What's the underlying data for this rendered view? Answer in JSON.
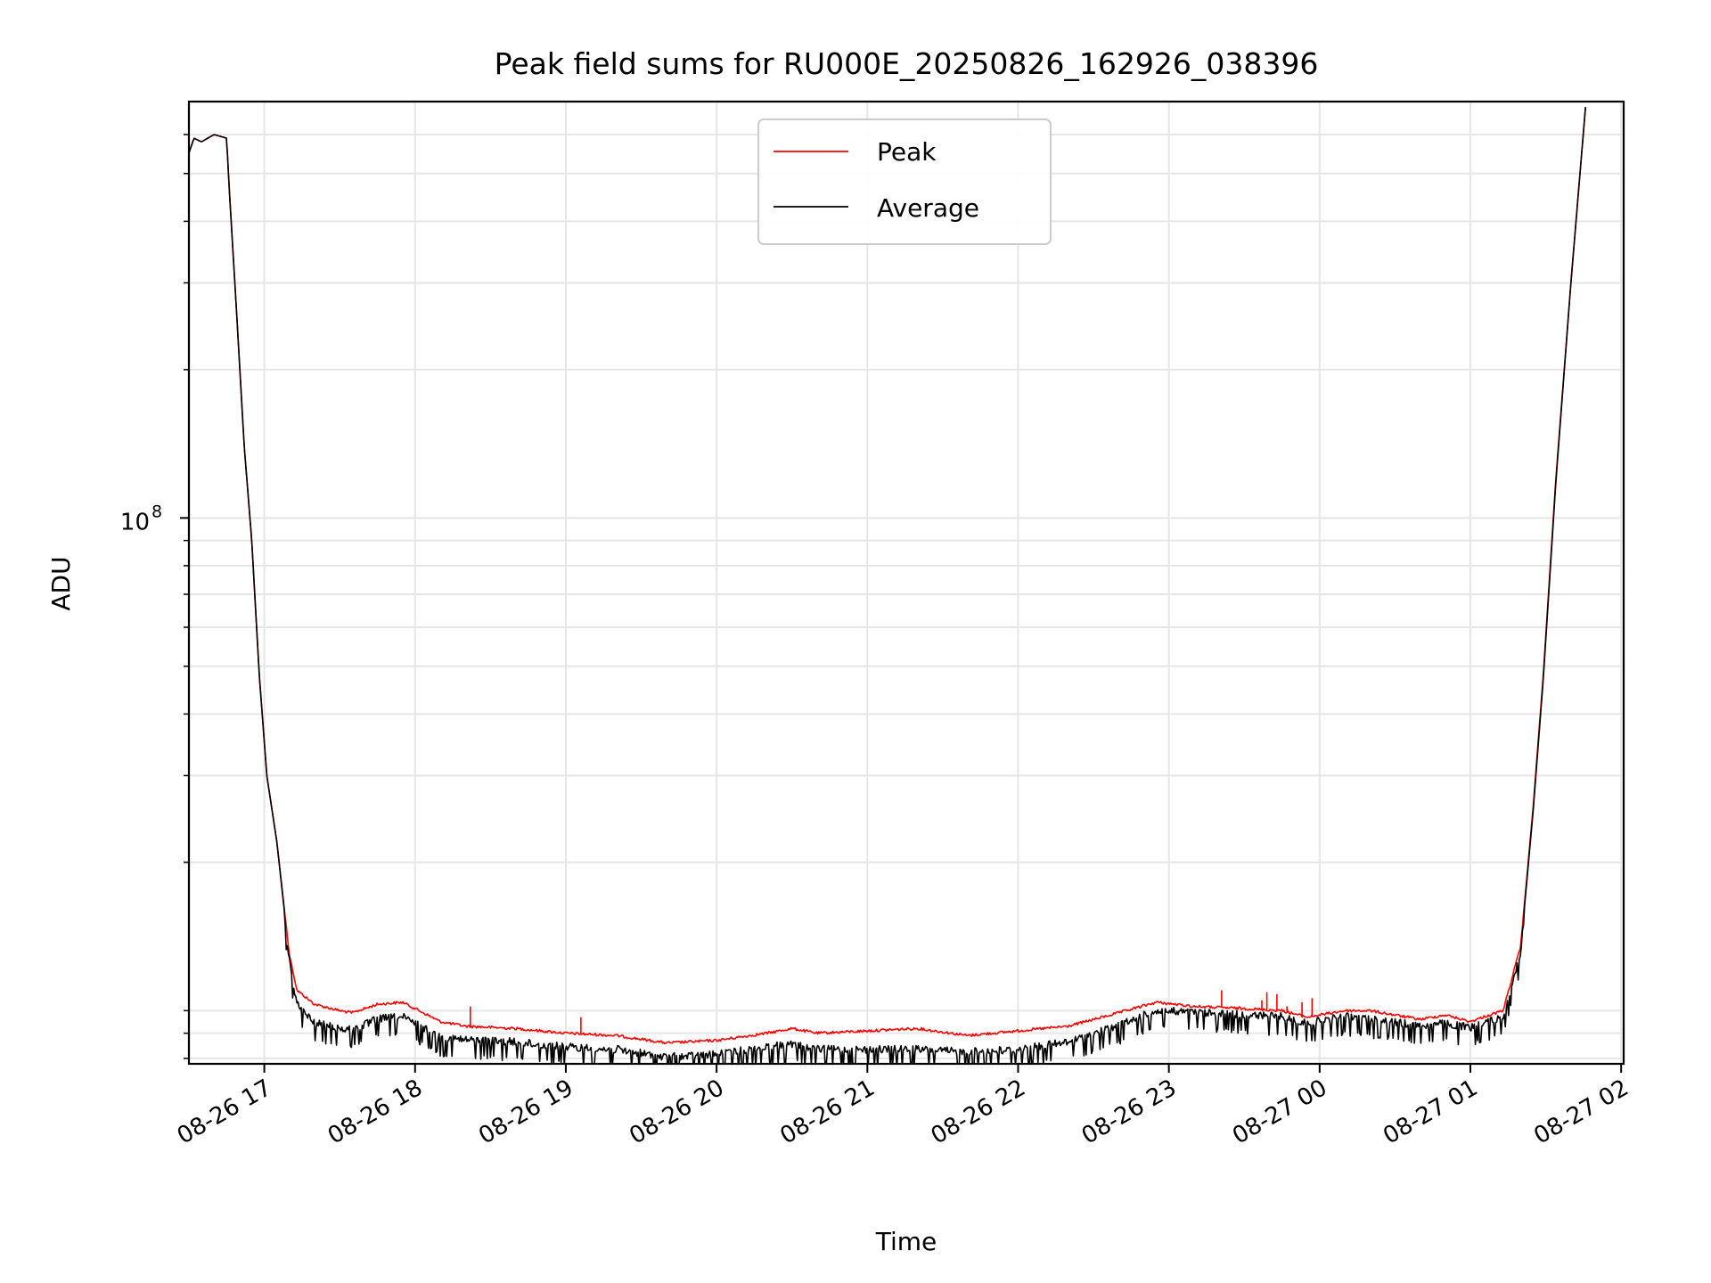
{
  "chart_data": {
    "type": "line",
    "title": "Peak field sums for RU000E_20250826_162926_038396",
    "xlabel": "Time",
    "ylabel": "ADU",
    "x_ticks": [
      "08-26 17",
      "08-26 18",
      "08-26 19",
      "08-26 20",
      "08-26 21",
      "08-26 22",
      "08-26 23",
      "08-27 00",
      "08-27 01",
      "08-27 02"
    ],
    "y_ticks": [
      {
        "value": 100000000,
        "base": "10",
        "exp": "8"
      }
    ],
    "y_scale": "log",
    "xlim": [
      "2025-08-26 16:30",
      "2025-08-27 02:01"
    ],
    "ylim": [
      7800000,
      700000000
    ],
    "grid": true,
    "legend_position": "upper center",
    "series": [
      {
        "name": "Peak",
        "color": "#ff0000",
        "x": [
          "2025-08-26 16:30",
          "2025-08-26 16:32",
          "2025-08-26 16:35",
          "2025-08-26 16:40",
          "2025-08-26 16:45",
          "2025-08-26 16:46",
          "2025-08-26 16:49",
          "2025-08-26 16:52",
          "2025-08-26 16:55",
          "2025-08-26 16:58",
          "2025-08-26 17:01",
          "2025-08-26 17:05",
          "2025-08-26 17:10",
          "2025-08-26 17:13",
          "2025-08-26 17:20",
          "2025-08-26 17:30",
          "2025-08-26 17:35",
          "2025-08-26 17:45",
          "2025-08-26 17:55",
          "2025-08-26 18:00",
          "2025-08-26 18:10",
          "2025-08-26 18:20",
          "2025-08-26 18:40",
          "2025-08-26 19:00",
          "2025-08-26 19:20",
          "2025-08-26 19:40",
          "2025-08-26 20:00",
          "2025-08-26 20:20",
          "2025-08-26 20:30",
          "2025-08-26 20:40",
          "2025-08-26 21:00",
          "2025-08-26 21:20",
          "2025-08-26 21:40",
          "2025-08-26 22:00",
          "2025-08-26 22:20",
          "2025-08-26 22:40",
          "2025-08-26 22:55",
          "2025-08-26 23:10",
          "2025-08-26 23:30",
          "2025-08-26 23:45",
          "2025-08-26 23:55",
          "2025-08-27 00:10",
          "2025-08-27 00:20",
          "2025-08-27 00:40",
          "2025-08-27 00:50",
          "2025-08-27 01:00",
          "2025-08-27 01:05",
          "2025-08-27 01:13",
          "2025-08-27 01:20",
          "2025-08-27 01:25",
          "2025-08-27 01:29",
          "2025-08-27 01:34",
          "2025-08-27 01:40",
          "2025-08-27 01:46"
        ],
        "y": [
          550000000,
          590000000,
          580000000,
          600000000,
          590000000,
          470000000,
          260000000,
          140000000,
          90000000,
          48000000,
          30000000,
          22000000,
          13000000,
          11000000,
          10300000,
          10000000,
          9900000,
          10300000,
          10400000,
          10100000,
          9500000,
          9300000,
          9200000,
          9000000,
          8900000,
          8600000,
          8700000,
          9000000,
          9200000,
          9000000,
          9100000,
          9200000,
          8900000,
          9100000,
          9300000,
          9900000,
          10400000,
          10200000,
          10100000,
          10000000,
          9700000,
          10000000,
          10000000,
          9600000,
          9800000,
          9500000,
          9700000,
          10000000,
          13500000,
          26000000,
          48000000,
          120000000,
          300000000,
          700000000
        ],
        "spikes": [
          {
            "x": "2025-08-26 23:21",
            "y": 11000000
          },
          {
            "x": "2025-08-26 23:37",
            "y": 10500000
          },
          {
            "x": "2025-08-26 23:39",
            "y": 10900000
          },
          {
            "x": "2025-08-26 23:43",
            "y": 10800000
          },
          {
            "x": "2025-08-26 23:47",
            "y": 10200000
          },
          {
            "x": "2025-08-26 23:53",
            "y": 10400000
          },
          {
            "x": "2025-08-26 23:57",
            "y": 10600000
          },
          {
            "x": "2025-08-26 18:22",
            "y": 10200000
          },
          {
            "x": "2025-08-26 19:06",
            "y": 9700000
          }
        ]
      },
      {
        "name": "Average",
        "color": "#000000",
        "x": [
          "2025-08-26 16:30",
          "2025-08-26 16:32",
          "2025-08-26 16:35",
          "2025-08-26 16:40",
          "2025-08-26 16:45",
          "2025-08-26 16:46",
          "2025-08-26 16:49",
          "2025-08-26 16:52",
          "2025-08-26 16:55",
          "2025-08-26 16:58",
          "2025-08-26 17:01",
          "2025-08-26 17:05",
          "2025-08-26 17:10",
          "2025-08-26 17:13",
          "2025-08-26 17:20",
          "2025-08-26 17:30",
          "2025-08-26 17:35",
          "2025-08-26 17:45",
          "2025-08-26 17:55",
          "2025-08-26 18:00",
          "2025-08-26 18:10",
          "2025-08-26 18:20",
          "2025-08-26 18:40",
          "2025-08-26 19:00",
          "2025-08-26 19:20",
          "2025-08-26 19:40",
          "2025-08-26 20:00",
          "2025-08-26 20:20",
          "2025-08-26 20:30",
          "2025-08-26 20:40",
          "2025-08-26 21:00",
          "2025-08-26 21:20",
          "2025-08-26 21:40",
          "2025-08-26 22:00",
          "2025-08-26 22:20",
          "2025-08-26 22:40",
          "2025-08-26 22:55",
          "2025-08-26 23:10",
          "2025-08-26 23:30",
          "2025-08-26 23:45",
          "2025-08-26 23:55",
          "2025-08-27 00:10",
          "2025-08-27 00:20",
          "2025-08-27 00:40",
          "2025-08-27 00:50",
          "2025-08-27 01:00",
          "2025-08-27 01:05",
          "2025-08-27 01:13",
          "2025-08-27 01:20",
          "2025-08-27 01:25",
          "2025-08-27 01:29",
          "2025-08-27 01:34",
          "2025-08-27 01:40",
          "2025-08-27 01:46"
        ],
        "y": [
          550000000,
          590000000,
          580000000,
          600000000,
          590000000,
          470000000,
          260000000,
          140000000,
          90000000,
          48000000,
          30000000,
          22000000,
          12800000,
          10500000,
          9600000,
          9400000,
          9300000,
          9800000,
          9900000,
          9600000,
          9000000,
          8900000,
          8800000,
          8600000,
          8500000,
          8200000,
          8300000,
          8600000,
          8700000,
          8500000,
          8500000,
          8500000,
          8400000,
          8500000,
          8800000,
          9500000,
          10200000,
          10100000,
          10000000,
          9900000,
          9600000,
          9900000,
          9800000,
          9500000,
          9600000,
          9400000,
          9600000,
          9900000,
          13300000,
          25500000,
          47000000,
          118000000,
          300000000,
          700000000
        ],
        "noise": true
      }
    ]
  }
}
